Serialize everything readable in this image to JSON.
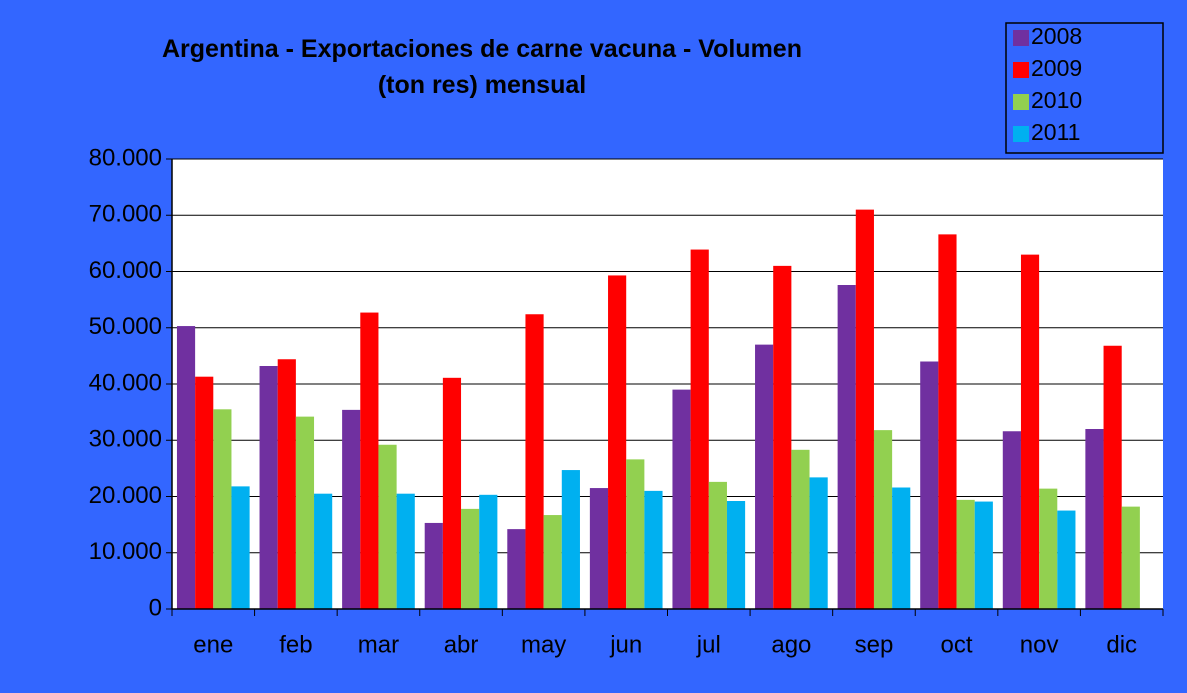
{
  "chart_data": {
    "type": "bar",
    "title": "Argentina - Exportaciones de carne vacuna - Volumen (ton res) mensual",
    "categories": [
      "ene",
      "feb",
      "mar",
      "abr",
      "may",
      "jun",
      "jul",
      "ago",
      "sep",
      "oct",
      "nov",
      "dic"
    ],
    "series": [
      {
        "name": "2008",
        "color": "#7030a0",
        "values": [
          50300,
          43200,
          35400,
          15300,
          14200,
          21500,
          39000,
          47000,
          57600,
          44000,
          31600,
          32000
        ]
      },
      {
        "name": "2009",
        "color": "#ff0000",
        "values": [
          41300,
          44400,
          52700,
          41100,
          52400,
          59300,
          63900,
          61000,
          71000,
          66600,
          63000,
          46800
        ]
      },
      {
        "name": "2010",
        "color": "#92d050",
        "values": [
          35500,
          34200,
          29200,
          17800,
          16700,
          26600,
          22600,
          28300,
          31800,
          19400,
          21400,
          18200
        ]
      },
      {
        "name": "2011",
        "color": "#00b0f0",
        "values": [
          21800,
          20500,
          20500,
          20300,
          24700,
          21000,
          19200,
          23400,
          21600,
          19100,
          17500,
          null
        ]
      }
    ],
    "ylim": [
      0,
      80000
    ],
    "yticks": [
      0,
      {
        "value": 10000,
        "label": "10.000"
      },
      {
        "value": 20000,
        "label": "20.000"
      },
      {
        "value": 30000,
        "label": "30.000"
      },
      {
        "value": 40000,
        "label": "40.000"
      },
      {
        "value": 50000,
        "label": "50.000"
      },
      {
        "value": 60000,
        "label": "60.000"
      },
      {
        "value": 70000,
        "label": "70.000"
      },
      {
        "value": 80000,
        "label": "80.000"
      }
    ],
    "grid": true,
    "legend": "top-right"
  }
}
